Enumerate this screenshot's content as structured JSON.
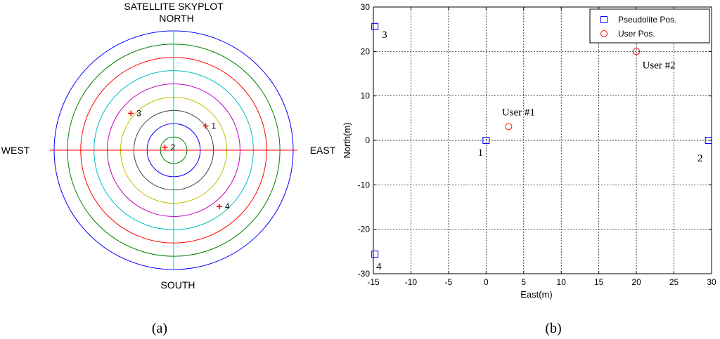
{
  "panels": {
    "a_label": "(a)",
    "b_label": "(b)"
  },
  "chart_data": [
    {
      "type": "scatter",
      "subtype": "polar-skyplot",
      "title": "SATELLITE SKYPLOT",
      "directions": {
        "north": "NORTH",
        "south": "SOUTH",
        "east": "EAST",
        "west": "WEST"
      },
      "rings": [
        {
          "color": "#0000ff"
        },
        {
          "color": "#008000"
        },
        {
          "color": "#ff0000"
        },
        {
          "color": "#00bfbf"
        },
        {
          "color": "#bf00bf"
        },
        {
          "color": "#bfbf00"
        },
        {
          "color": "#404040"
        },
        {
          "color": "#0000ff"
        },
        {
          "color": "#008000"
        }
      ],
      "axis_colors": {
        "horizontal": "#ff0000",
        "vertical": "#00bfbf"
      },
      "marker_color": "#ff0000",
      "satellites": [
        {
          "label": "1",
          "east": 0.268,
          "north": 0.203
        },
        {
          "label": "2",
          "east": -0.073,
          "north": 0.024
        },
        {
          "label": "3",
          "east": -0.358,
          "north": 0.309
        },
        {
          "label": "4",
          "east": 0.382,
          "north": -0.472
        }
      ]
    },
    {
      "type": "scatter",
      "xlabel": "East(m)",
      "ylabel": "North(m)",
      "xlim": [
        -15,
        30
      ],
      "ylim": [
        -30,
        30
      ],
      "xticks": [
        -15,
        -10,
        -5,
        0,
        5,
        10,
        15,
        20,
        25,
        30
      ],
      "yticks": [
        -30,
        -20,
        -10,
        0,
        10,
        20,
        30
      ],
      "grid": true,
      "legend_position": "top-right",
      "series": [
        {
          "name": "Pseudolite Pos.",
          "marker": "square",
          "color": "#0000ff",
          "points": [
            {
              "x": 0,
              "y": 0,
              "label": "1"
            },
            {
              "x": 29.6,
              "y": 0,
              "label": "2"
            },
            {
              "x": -14.8,
              "y": 25.6,
              "label": "3"
            },
            {
              "x": -14.8,
              "y": -25.6,
              "label": "4"
            }
          ]
        },
        {
          "name": "User Pos.",
          "marker": "circle",
          "color": "#ff0000",
          "points": [
            {
              "x": 3,
              "y": 3.1,
              "label": "User #1"
            },
            {
              "x": 20,
              "y": 20,
              "label": "User #2"
            }
          ]
        }
      ]
    }
  ]
}
